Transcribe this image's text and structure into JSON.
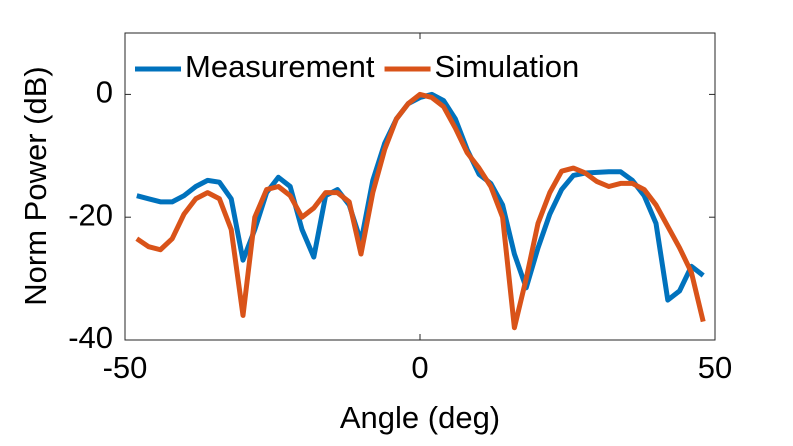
{
  "chart_data": {
    "type": "line",
    "xlabel": "Angle (deg)",
    "ylabel": "Norm Power (dB)",
    "x": [
      -48,
      -46,
      -44,
      -42,
      -40,
      -38,
      -36,
      -34,
      -32,
      -30,
      -28,
      -26,
      -24,
      -22,
      -20,
      -18,
      -16,
      -14,
      -12,
      -10,
      -8,
      -6,
      -4,
      -2,
      0,
      2,
      4,
      6,
      8,
      10,
      12,
      14,
      16,
      18,
      20,
      22,
      24,
      26,
      28,
      30,
      32,
      34,
      36,
      38,
      40,
      42,
      44,
      46,
      48
    ],
    "series": [
      {
        "name": "Measurement",
        "color": "#0072bd",
        "values": [
          -16.5,
          -17,
          -17.5,
          -17.5,
          -16.5,
          -15,
          -14,
          -14.3,
          -17,
          -27,
          -22,
          -16,
          -13.5,
          -15,
          -22,
          -26.5,
          -16.5,
          -15.5,
          -18,
          -24,
          -14,
          -8,
          -4,
          -1.5,
          -0.5,
          0,
          -1,
          -4,
          -9,
          -13,
          -14.5,
          -18,
          -26,
          -31.5,
          -25,
          -19.5,
          -15.5,
          -13.2,
          -12.8,
          -12.7,
          -12.6,
          -12.6,
          -14,
          -16.5,
          -21,
          -33.5,
          -32,
          -28,
          -29.5
        ]
      },
      {
        "name": "Simulation",
        "color": "#d95319",
        "values": [
          -23.5,
          -24.8,
          -25.3,
          -23.5,
          -19.5,
          -17,
          -16,
          -17,
          -22,
          -36,
          -20,
          -15.5,
          -15,
          -16.5,
          -20,
          -18.5,
          -16,
          -16,
          -17.5,
          -26,
          -16,
          -9,
          -4,
          -1.5,
          0,
          -0.5,
          -2,
          -5.5,
          -9.5,
          -12,
          -15,
          -20,
          -38,
          -30,
          -21,
          -16,
          -12.5,
          -12,
          -12.8,
          -14.2,
          -15,
          -14.5,
          -14.5,
          -15.5,
          -18,
          -21.5,
          -25,
          -29,
          -37
        ]
      }
    ],
    "xlim": [
      -50,
      50
    ],
    "xticks": [
      -50,
      0,
      50
    ],
    "ylim": [
      -40,
      10
    ],
    "yticks": [
      -40,
      -20,
      0
    ],
    "legend": "top-left",
    "grid": false
  }
}
